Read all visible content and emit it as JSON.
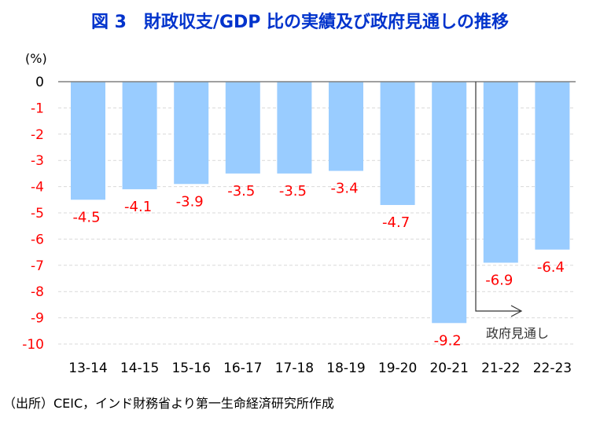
{
  "chart_data": {
    "type": "bar",
    "title": "図 3　財政収支/GDP 比の実績及び政府見通しの推移",
    "ylabel": "(%)",
    "xlabel": "",
    "ylim": [
      -10,
      0
    ],
    "yticks": [
      0,
      -1,
      -2,
      -3,
      -4,
      -5,
      -6,
      -7,
      -8,
      -9,
      -10
    ],
    "categories": [
      "13-14",
      "14-15",
      "15-16",
      "16-17",
      "17-18",
      "18-19",
      "19-20",
      "20-21",
      "21-22",
      "22-23"
    ],
    "values": [
      -4.5,
      -4.1,
      -3.9,
      -3.5,
      -3.5,
      -3.4,
      -4.7,
      -9.2,
      -6.9,
      -6.4
    ],
    "grid": true,
    "annotation": "政府見通し",
    "annotation_from_category": "21-22",
    "bar_color": "#99ccff",
    "label_color": "#ff0000",
    "tick_color": "#ff0000"
  },
  "source": "（出所）CEIC，インド財務省より第一生命経済研究所作成"
}
